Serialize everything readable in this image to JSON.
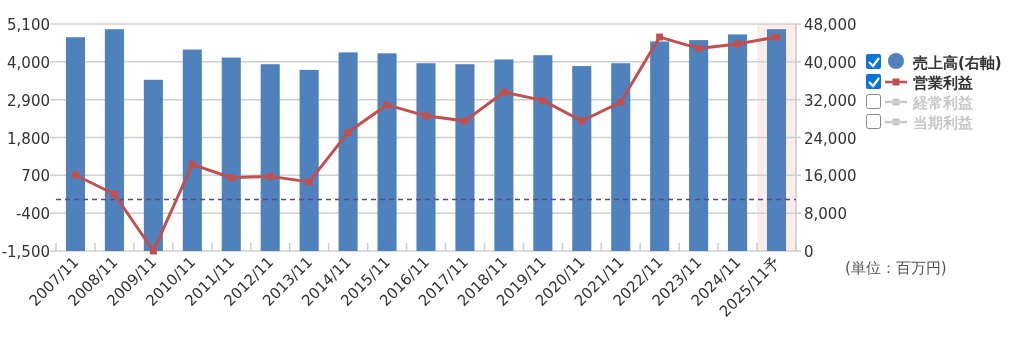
{
  "chart_data": {
    "type": "bar",
    "categories": [
      "2007/11",
      "2008/11",
      "2009/11",
      "2010/11",
      "2011/11",
      "2012/11",
      "2013/11",
      "2014/11",
      "2015/11",
      "2016/11",
      "2017/11",
      "2018/11",
      "2019/11",
      "2020/11",
      "2021/11",
      "2022/11",
      "2023/11",
      "2024/11",
      "2025/11予"
    ],
    "series": [
      {
        "name": "売上高(右軸)",
        "axis": "y2",
        "color": "#4f81bd",
        "values": [
          45200,
          46900,
          36200,
          42600,
          40900,
          39500,
          38300,
          42000,
          41800,
          39700,
          39500,
          40500,
          41400,
          39100,
          39700,
          44300,
          44600,
          45800,
          46900
        ]
      },
      {
        "name": "営業利益",
        "type": "line",
        "color": "#c0504d",
        "values": [
          710,
          150,
          -1500,
          1020,
          630,
          670,
          510,
          1950,
          2750,
          2430,
          2280,
          3120,
          2880,
          2280,
          2830,
          4720,
          4390,
          4520,
          4720
        ]
      },
      {
        "name": "経常利益",
        "type": "line",
        "color": "#c8c8c8",
        "values": [
          null,
          null,
          null,
          null,
          null,
          null,
          null,
          null,
          null,
          null,
          null,
          null,
          null,
          null,
          null,
          null,
          null,
          null,
          null
        ]
      },
      {
        "name": "当期利益",
        "type": "line",
        "color": "#c8c8c8",
        "values": [
          null,
          null,
          null,
          null,
          null,
          null,
          null,
          null,
          null,
          null,
          null,
          null,
          null,
          null,
          null,
          null,
          null,
          null,
          null
        ]
      }
    ],
    "ylim": [
      -1500,
      5100
    ],
    "yticks": [
      {
        "value": -1500,
        "label": "-1,500"
      },
      -400,
      700,
      {
        "value": 1800,
        "label": "1,800"
      },
      {
        "value": 2900,
        "label": "2,900"
      },
      {
        "value": 4000,
        "label": "4,000"
      },
      {
        "value": 5100,
        "label": "5,100"
      }
    ],
    "y2lim": [
      0,
      48000
    ],
    "y2ticks": [
      0,
      {
        "value": 8000,
        "label": "8,000"
      },
      {
        "value": 16000,
        "label": "16,000"
      },
      {
        "value": 24000,
        "label": "24,000"
      },
      {
        "value": 32000,
        "label": "32,000"
      },
      {
        "value": 40000,
        "label": "40,000"
      },
      {
        "value": 48000,
        "label": "48,000"
      }
    ],
    "ref_lines": [
      {
        "axis": "y",
        "value": 0,
        "color": "#5b4a8b",
        "line_style": "dashed"
      }
    ],
    "bands": [
      {
        "axis": "x",
        "from": "2025/11予",
        "to": "2025/11予",
        "color": "#fdecea"
      }
    ],
    "annotations": [
      "(単位：百万円)"
    ],
    "grid": "y",
    "legend": "right",
    "marker": "square"
  }
}
